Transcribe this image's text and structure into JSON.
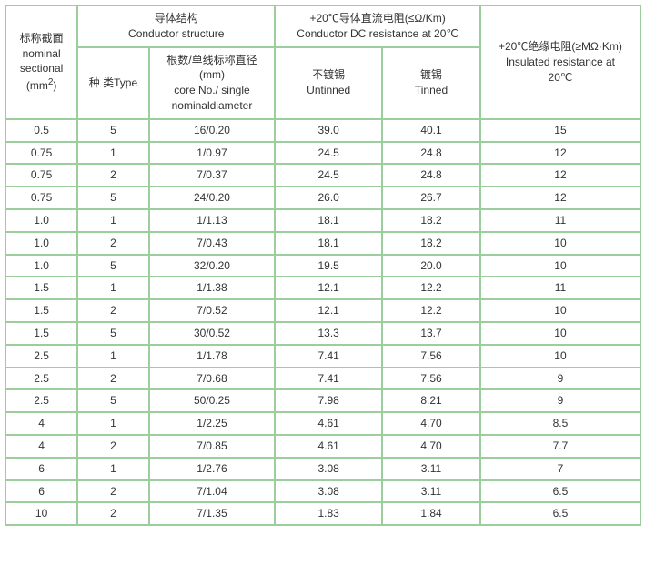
{
  "headers": {
    "nominal_sectional_cn": "标称截面",
    "nominal_sectional_en1": "nominal",
    "nominal_sectional_en2": "sectional",
    "nominal_sectional_unit": "(mm",
    "nominal_sectional_sup": "2",
    "nominal_sectional_close": ")",
    "conductor_structure_cn": "导体结构",
    "conductor_structure_en": "Conductor structure",
    "type_cn": "种 类",
    "type_en": "Type",
    "core_cn": "根数/单线标称直径",
    "core_unit": "(mm)",
    "core_en1": "core No./ single",
    "core_en2": "nominaldiameter",
    "dc_resistance_cn": "+20℃导体直流电阻(≤Ω/Km)",
    "dc_resistance_en": "Conductor DC resistance at 20℃",
    "untinned_cn": "不镀锡",
    "untinned_en": "Untinned",
    "tinned_cn": "镀锡",
    "tinned_en": "Tinned",
    "insulated_cn": "+20℃绝缘电阻(≥MΩ·Km)",
    "insulated_en1": "Insulated resistance at",
    "insulated_en2": "20℃"
  },
  "rows": [
    {
      "sectional": "0.5",
      "type": "5",
      "core": "16/0.20",
      "untinned": "39.0",
      "tinned": "40.1",
      "insulated": "15"
    },
    {
      "sectional": "0.75",
      "type": "1",
      "core": "1/0.97",
      "untinned": "24.5",
      "tinned": "24.8",
      "insulated": "12"
    },
    {
      "sectional": "0.75",
      "type": "2",
      "core": "7/0.37",
      "untinned": "24.5",
      "tinned": "24.8",
      "insulated": "12"
    },
    {
      "sectional": "0.75",
      "type": "5",
      "core": "24/0.20",
      "untinned": "26.0",
      "tinned": "26.7",
      "insulated": "12"
    },
    {
      "sectional": "1.0",
      "type": "1",
      "core": "1/1.13",
      "untinned": "18.1",
      "tinned": "18.2",
      "insulated": "11"
    },
    {
      "sectional": "1.0",
      "type": "2",
      "core": "7/0.43",
      "untinned": "18.1",
      "tinned": "18.2",
      "insulated": "10"
    },
    {
      "sectional": "1.0",
      "type": "5",
      "core": "32/0.20",
      "untinned": "19.5",
      "tinned": "20.0",
      "insulated": "10"
    },
    {
      "sectional": "1.5",
      "type": "1",
      "core": "1/1.38",
      "untinned": "12.1",
      "tinned": "12.2",
      "insulated": "11"
    },
    {
      "sectional": "1.5",
      "type": "2",
      "core": "7/0.52",
      "untinned": "12.1",
      "tinned": "12.2",
      "insulated": "10"
    },
    {
      "sectional": "1.5",
      "type": "5",
      "core": "30/0.52",
      "untinned": "13.3",
      "tinned": "13.7",
      "insulated": "10"
    },
    {
      "sectional": "2.5",
      "type": "1",
      "core": "1/1.78",
      "untinned": "7.41",
      "tinned": "7.56",
      "insulated": "10"
    },
    {
      "sectional": "2.5",
      "type": "2",
      "core": "7/0.68",
      "untinned": "7.41",
      "tinned": "7.56",
      "insulated": "9"
    },
    {
      "sectional": "2.5",
      "type": "5",
      "core": "50/0.25",
      "untinned": "7.98",
      "tinned": "8.21",
      "insulated": "9"
    },
    {
      "sectional": "4",
      "type": "1",
      "core": "1/2.25",
      "untinned": "4.61",
      "tinned": "4.70",
      "insulated": "8.5"
    },
    {
      "sectional": "4",
      "type": "2",
      "core": "7/0.85",
      "untinned": "4.61",
      "tinned": "4.70",
      "insulated": "7.7"
    },
    {
      "sectional": "6",
      "type": "1",
      "core": "1/2.76",
      "untinned": "3.08",
      "tinned": "3.11",
      "insulated": "7"
    },
    {
      "sectional": "6",
      "type": "2",
      "core": "7/1.04",
      "untinned": "3.08",
      "tinned": "3.11",
      "insulated": "6.5"
    },
    {
      "sectional": "10",
      "type": "2",
      "core": "7/1.35",
      "untinned": "1.83",
      "tinned": "1.84",
      "insulated": "6.5"
    }
  ],
  "columns": [
    {
      "key": "sectional",
      "class": "col0"
    },
    {
      "key": "type",
      "class": "col1"
    },
    {
      "key": "core",
      "class": "col2"
    },
    {
      "key": "untinned",
      "class": "col3"
    },
    {
      "key": "tinned",
      "class": "col4"
    },
    {
      "key": "insulated",
      "class": "col5"
    }
  ]
}
